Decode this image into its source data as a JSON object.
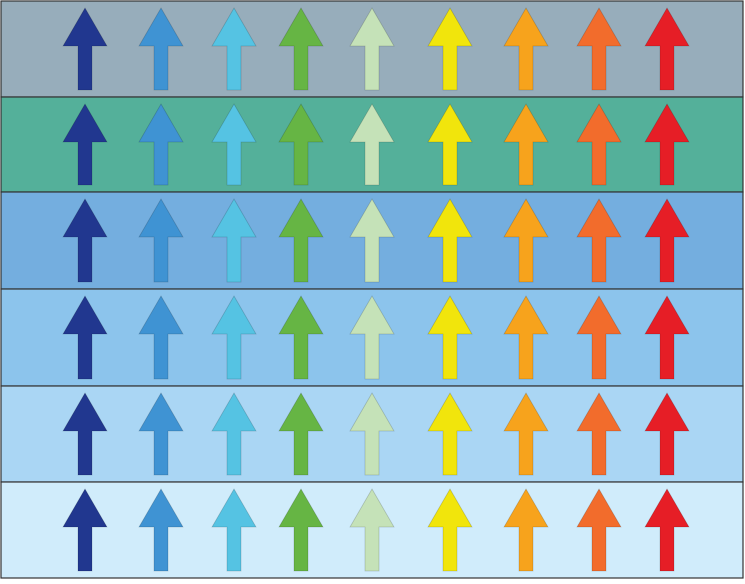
{
  "rows": [
    {
      "background": "#97adbb"
    },
    {
      "background": "#54b09a"
    },
    {
      "background": "#74aedf"
    },
    {
      "background": "#8cc4ec"
    },
    {
      "background": "#aad6f4"
    },
    {
      "background": "#d0ecfb"
    }
  ],
  "arrows": [
    {
      "color": "#21378f"
    },
    {
      "color": "#3f93d3"
    },
    {
      "color": "#55c3e3"
    },
    {
      "color": "#66b544"
    },
    {
      "color": "#c5e2b8"
    },
    {
      "color": "#f1e50c"
    },
    {
      "color": "#f7a31c"
    },
    {
      "color": "#f26c2c"
    },
    {
      "color": "#e61e26"
    }
  ],
  "border_color": "#333333"
}
